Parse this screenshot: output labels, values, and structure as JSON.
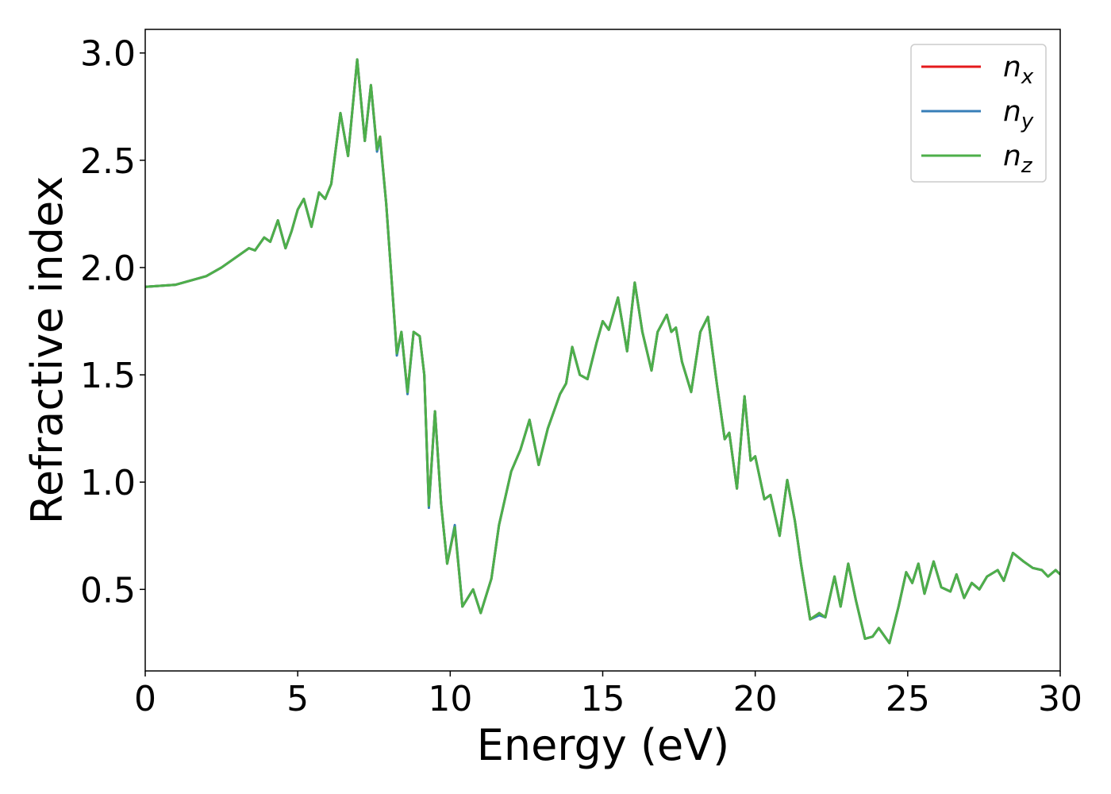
{
  "chart_data": {
    "type": "line",
    "xlabel": "Energy (eV)",
    "ylabel": "Refractive index",
    "x": [
      0,
      1,
      2,
      2.5,
      3,
      3.4,
      3.6,
      3.9,
      4.1,
      4.35,
      4.6,
      4.8,
      5.0,
      5.2,
      5.45,
      5.7,
      5.9,
      6.1,
      6.4,
      6.65,
      6.95,
      7.2,
      7.4,
      7.6,
      7.7,
      7.9,
      8.1,
      8.25,
      8.4,
      8.6,
      8.8,
      9.0,
      9.15,
      9.3,
      9.5,
      9.7,
      9.9,
      10.15,
      10.4,
      10.75,
      11.0,
      11.35,
      11.6,
      12.0,
      12.3,
      12.6,
      12.9,
      13.2,
      13.6,
      13.8,
      14.0,
      14.25,
      14.5,
      14.8,
      15.0,
      15.2,
      15.5,
      15.8,
      16.05,
      16.3,
      16.6,
      16.8,
      17.1,
      17.25,
      17.4,
      17.6,
      17.9,
      18.2,
      18.45,
      18.75,
      19.0,
      19.15,
      19.4,
      19.65,
      19.85,
      20.0,
      20.3,
      20.5,
      20.8,
      21.05,
      21.3,
      21.5,
      21.8,
      22.1,
      22.3,
      22.6,
      22.8,
      23.05,
      23.3,
      23.6,
      23.85,
      24.05,
      24.4,
      24.7,
      24.95,
      25.15,
      25.35,
      25.55,
      25.85,
      26.1,
      26.4,
      26.6,
      26.85,
      27.1,
      27.35,
      27.6,
      27.95,
      28.15,
      28.45,
      28.8,
      29.1,
      29.4,
      29.6,
      29.85,
      30
    ],
    "series": [
      {
        "name": "n_x",
        "color": "#e41a1c",
        "values": [
          1.91,
          1.92,
          1.96,
          2.0,
          2.05,
          2.09,
          2.08,
          2.14,
          2.12,
          2.22,
          2.09,
          2.17,
          2.27,
          2.32,
          2.19,
          2.35,
          2.32,
          2.39,
          2.72,
          2.52,
          2.97,
          2.59,
          2.85,
          2.55,
          2.61,
          2.3,
          1.9,
          1.6,
          1.7,
          1.42,
          1.7,
          1.68,
          1.5,
          0.89,
          1.33,
          0.9,
          0.62,
          0.79,
          0.42,
          0.5,
          0.39,
          0.55,
          0.8,
          1.05,
          1.15,
          1.29,
          1.08,
          1.25,
          1.41,
          1.46,
          1.63,
          1.5,
          1.48,
          1.65,
          1.75,
          1.71,
          1.86,
          1.61,
          1.93,
          1.7,
          1.52,
          1.7,
          1.78,
          1.7,
          1.72,
          1.56,
          1.42,
          1.7,
          1.77,
          1.45,
          1.2,
          1.23,
          0.97,
          1.4,
          1.1,
          1.12,
          0.92,
          0.94,
          0.75,
          1.01,
          0.82,
          0.62,
          0.36,
          0.39,
          0.37,
          0.56,
          0.42,
          0.62,
          0.45,
          0.27,
          0.28,
          0.32,
          0.25,
          0.42,
          0.58,
          0.53,
          0.62,
          0.48,
          0.63,
          0.51,
          0.49,
          0.57,
          0.46,
          0.53,
          0.5,
          0.56,
          0.59,
          0.54,
          0.67,
          0.63,
          0.6,
          0.59,
          0.56,
          0.59,
          0.57
        ]
      },
      {
        "name": "n_y",
        "color": "#377eb8",
        "values": [
          1.91,
          1.92,
          1.96,
          2.0,
          2.05,
          2.09,
          2.08,
          2.14,
          2.12,
          2.22,
          2.09,
          2.17,
          2.27,
          2.32,
          2.19,
          2.35,
          2.32,
          2.39,
          2.72,
          2.52,
          2.97,
          2.59,
          2.85,
          2.54,
          2.6,
          2.3,
          1.9,
          1.59,
          1.7,
          1.41,
          1.7,
          1.68,
          1.5,
          0.88,
          1.33,
          0.9,
          0.62,
          0.8,
          0.42,
          0.5,
          0.39,
          0.55,
          0.8,
          1.05,
          1.15,
          1.29,
          1.08,
          1.25,
          1.41,
          1.46,
          1.63,
          1.5,
          1.48,
          1.65,
          1.75,
          1.71,
          1.86,
          1.61,
          1.93,
          1.7,
          1.52,
          1.7,
          1.78,
          1.7,
          1.72,
          1.56,
          1.42,
          1.7,
          1.77,
          1.45,
          1.2,
          1.23,
          0.97,
          1.4,
          1.1,
          1.12,
          0.92,
          0.94,
          0.75,
          1.01,
          0.82,
          0.62,
          0.36,
          0.38,
          0.37,
          0.56,
          0.42,
          0.62,
          0.45,
          0.27,
          0.28,
          0.32,
          0.25,
          0.42,
          0.58,
          0.53,
          0.62,
          0.48,
          0.63,
          0.51,
          0.49,
          0.57,
          0.46,
          0.53,
          0.5,
          0.56,
          0.59,
          0.54,
          0.67,
          0.63,
          0.6,
          0.59,
          0.56,
          0.59,
          0.57
        ]
      },
      {
        "name": "n_z",
        "color": "#4daf4a",
        "values": [
          1.91,
          1.92,
          1.96,
          2.0,
          2.05,
          2.09,
          2.08,
          2.14,
          2.12,
          2.22,
          2.09,
          2.17,
          2.27,
          2.32,
          2.19,
          2.35,
          2.32,
          2.39,
          2.72,
          2.52,
          2.97,
          2.59,
          2.85,
          2.55,
          2.61,
          2.3,
          1.9,
          1.6,
          1.7,
          1.42,
          1.7,
          1.68,
          1.5,
          0.89,
          1.33,
          0.9,
          0.62,
          0.79,
          0.42,
          0.5,
          0.39,
          0.55,
          0.8,
          1.05,
          1.15,
          1.29,
          1.08,
          1.25,
          1.41,
          1.46,
          1.63,
          1.5,
          1.48,
          1.65,
          1.75,
          1.71,
          1.86,
          1.61,
          1.93,
          1.7,
          1.52,
          1.7,
          1.78,
          1.7,
          1.72,
          1.56,
          1.42,
          1.7,
          1.77,
          1.45,
          1.2,
          1.23,
          0.97,
          1.4,
          1.1,
          1.12,
          0.92,
          0.94,
          0.75,
          1.01,
          0.82,
          0.62,
          0.36,
          0.39,
          0.37,
          0.56,
          0.42,
          0.62,
          0.45,
          0.27,
          0.28,
          0.32,
          0.25,
          0.42,
          0.58,
          0.53,
          0.62,
          0.48,
          0.63,
          0.51,
          0.49,
          0.57,
          0.46,
          0.53,
          0.5,
          0.56,
          0.59,
          0.54,
          0.67,
          0.63,
          0.6,
          0.59,
          0.56,
          0.59,
          0.57
        ]
      }
    ],
    "xlim": [
      0,
      30
    ],
    "xticks": [
      0,
      5,
      10,
      15,
      20,
      25,
      30
    ],
    "ylim": [
      0.12,
      3.11
    ],
    "yticks": [
      {
        "value": 0.5,
        "label": "0.5"
      },
      {
        "value": 1.0,
        "label": "1.0"
      },
      {
        "value": 1.5,
        "label": "1.5"
      },
      {
        "value": 2.0,
        "label": "2.0"
      },
      {
        "value": 2.5,
        "label": "2.5"
      },
      {
        "value": 3.0,
        "label": "3.0"
      }
    ],
    "grid": false,
    "legend": "upper right"
  }
}
